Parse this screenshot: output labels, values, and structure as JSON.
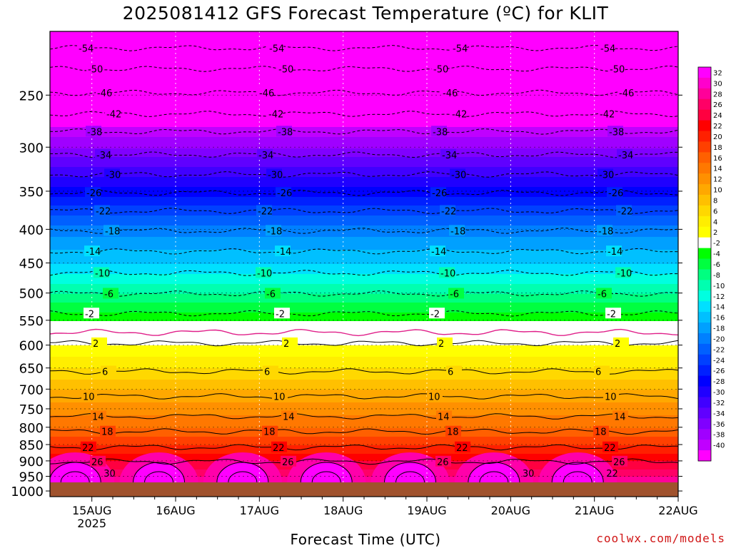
{
  "title": "2025081412 GFS Forecast Temperature (ºC) for KLIT",
  "xlabel": "Forecast Time (UTC)",
  "credit": "coolwx.com/models",
  "chart_data": {
    "type": "heatmap",
    "title": "2025081412 GFS Forecast Temperature (ºC) for KLIT",
    "xlabel": "Forecast Time (UTC)",
    "ylabel": "",
    "x_ticks": [
      "15AUG",
      "16AUG",
      "17AUG",
      "18AUG",
      "19AUG",
      "20AUG",
      "21AUG",
      "22AUG"
    ],
    "x_sub_label": "2025",
    "y_ticks": [
      250,
      300,
      350,
      400,
      450,
      500,
      550,
      600,
      650,
      700,
      750,
      800,
      850,
      900,
      950,
      1000
    ],
    "y_scale": "log",
    "ylim_hpa": [
      200,
      1020
    ],
    "xlim_days": [
      14.5,
      22.0
    ],
    "grid": true,
    "colorbar_labels": [
      32,
      30,
      28,
      26,
      24,
      22,
      20,
      18,
      16,
      14,
      12,
      10,
      8,
      6,
      4,
      2,
      -2,
      -4,
      -6,
      -8,
      -10,
      -12,
      -14,
      -16,
      -18,
      -20,
      -22,
      -24,
      -26,
      -28,
      -30,
      -32,
      -34,
      -36,
      -38,
      -40
    ],
    "colorbar_colors": [
      "#ff00ff",
      "#ff00cc",
      "#ff0099",
      "#ff0066",
      "#ff0040",
      "#ff0000",
      "#ff2000",
      "#ff4000",
      "#ff6000",
      "#ff7800",
      "#ff9000",
      "#ffa800",
      "#ffc000",
      "#ffd800",
      "#ffee00",
      "#ffff00",
      "#ffffff",
      "#00ff00",
      "#00ff40",
      "#00ff80",
      "#00ffb0",
      "#00ffe0",
      "#00e0ff",
      "#00c0ff",
      "#00a0ff",
      "#0080ff",
      "#0060ff",
      "#0040ff",
      "#0020ff",
      "#0000ff",
      "#2000ff",
      "#4000ff",
      "#6000ff",
      "#8000ff",
      "#a000ff",
      "#c000ff",
      "#ff00ff"
    ],
    "ground_color": "#a0522d",
    "mean_profile": [
      {
        "p": 200,
        "t": -56
      },
      {
        "p": 250,
        "t": -46
      },
      {
        "p": 300,
        "t": -36
      },
      {
        "p": 350,
        "t": -27
      },
      {
        "p": 400,
        "t": -19
      },
      {
        "p": 450,
        "t": -14
      },
      {
        "p": 500,
        "t": -8
      },
      {
        "p": 550,
        "t": -2
      },
      {
        "p": 600,
        "t": 2
      },
      {
        "p": 650,
        "t": 6
      },
      {
        "p": 700,
        "t": 10
      },
      {
        "p": 750,
        "t": 13
      },
      {
        "p": 800,
        "t": 16
      },
      {
        "p": 850,
        "t": 20
      },
      {
        "p": 900,
        "t": 24
      },
      {
        "p": 950,
        "t": 28
      },
      {
        "p": 1000,
        "t": 33
      }
    ],
    "dashed_contours": [
      {
        "value": -54,
        "label": "54",
        "p": 212
      },
      {
        "value": -50,
        "label": "50",
        "p": 228
      },
      {
        "value": -46,
        "label": "46",
        "p": 248
      },
      {
        "value": -42,
        "label": "42",
        "p": 267
      },
      {
        "value": -38,
        "label": "38",
        "p": 284
      },
      {
        "value": -34,
        "label": "34",
        "p": 308
      },
      {
        "value": -30,
        "label": "30",
        "p": 330
      },
      {
        "value": -26,
        "label": "26",
        "p": 352
      },
      {
        "value": -22,
        "label": "22",
        "p": 375
      },
      {
        "value": -18,
        "label": "18",
        "p": 402
      },
      {
        "value": -14,
        "label": "14",
        "p": 432
      },
      {
        "value": -10,
        "label": "10",
        "p": 466
      },
      {
        "value": -6,
        "label": "6",
        "p": 501
      },
      {
        "value": -2,
        "label": "2",
        "p": 537
      }
    ],
    "solid_contours": [
      {
        "value": 2,
        "label": "2",
        "p": 596
      },
      {
        "value": 6,
        "label": "6",
        "p": 658
      },
      {
        "value": 10,
        "label": "10",
        "p": 718
      },
      {
        "value": 14,
        "label": "14",
        "p": 770
      },
      {
        "value": 18,
        "label": "18",
        "p": 812
      },
      {
        "value": 22,
        "label": "22",
        "p": 858
      },
      {
        "value": 26,
        "label": "26",
        "p": 902
      }
    ],
    "freezing_line": {
      "value": 0,
      "p": 574
    },
    "warm_cores": [
      {
        "day": 14.8,
        "label": "30"
      },
      {
        "day": 15.8,
        "label": ""
      },
      {
        "day": 16.8,
        "label": ""
      },
      {
        "day": 17.8,
        "label": ""
      },
      {
        "day": 18.8,
        "label": ""
      },
      {
        "day": 19.8,
        "label": "30"
      },
      {
        "day": 20.8,
        "label": "22"
      }
    ]
  }
}
